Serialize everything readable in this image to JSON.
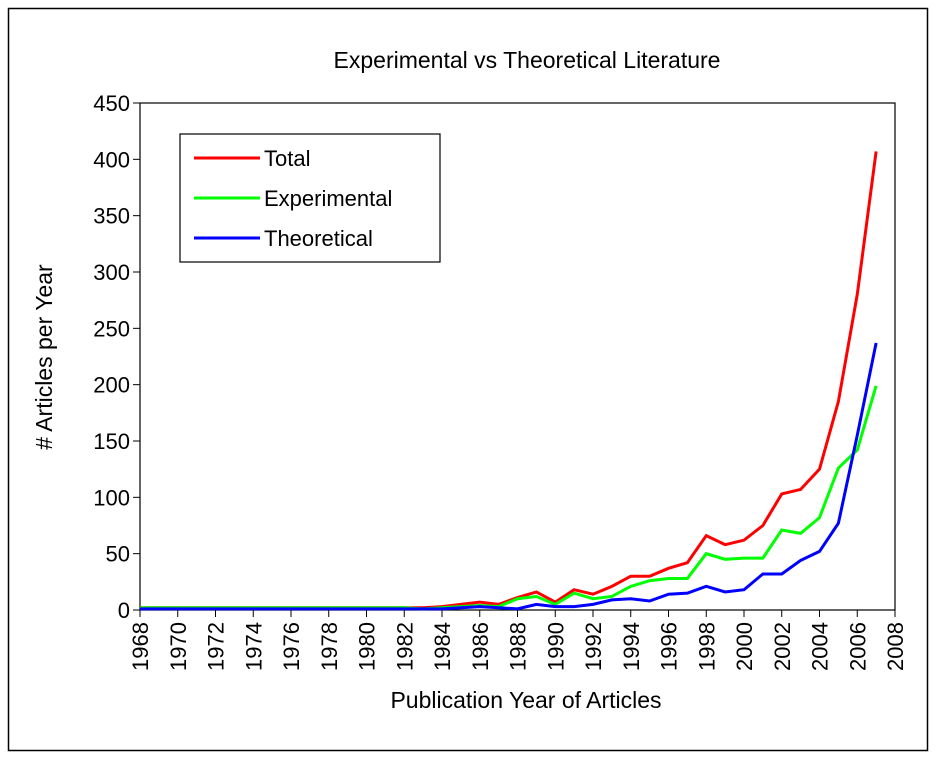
{
  "chart_data": {
    "type": "line",
    "title": "Experimental vs Theoretical Literature",
    "xlabel": "Publication Year of Articles",
    "ylabel": "# Articles per Year",
    "x": [
      1968,
      1969,
      1970,
      1971,
      1972,
      1973,
      1974,
      1975,
      1976,
      1977,
      1978,
      1979,
      1980,
      1981,
      1982,
      1983,
      1984,
      1985,
      1986,
      1987,
      1988,
      1989,
      1990,
      1991,
      1992,
      1993,
      1994,
      1995,
      1996,
      1997,
      1998,
      1999,
      2000,
      2001,
      2002,
      2003,
      2004,
      2005,
      2006,
      2007
    ],
    "series": [
      {
        "name": "Total",
        "color": "#ff0000",
        "values": [
          2,
          2,
          2,
          2,
          2,
          2,
          2,
          2,
          2,
          2,
          2,
          2,
          2,
          2,
          2,
          2,
          3,
          5,
          7,
          5,
          11,
          16,
          7,
          18,
          14,
          21,
          30,
          30,
          37,
          42,
          66,
          58,
          62,
          75,
          103,
          107,
          125,
          185,
          280,
          407
        ]
      },
      {
        "name": "Experimental",
        "color": "#00ff00",
        "values": [
          2,
          2,
          2,
          2,
          2,
          2,
          2,
          2,
          2,
          2,
          2,
          2,
          2,
          2,
          2,
          1,
          2,
          3,
          4,
          3,
          10,
          12,
          5,
          15,
          10,
          12,
          21,
          26,
          28,
          28,
          50,
          45,
          46,
          46,
          71,
          68,
          82,
          126,
          142,
          199
        ]
      },
      {
        "name": "Theoretical",
        "color": "#0000ff",
        "values": [
          1,
          1,
          1,
          1,
          1,
          1,
          1,
          1,
          1,
          1,
          1,
          1,
          1,
          1,
          1,
          1,
          1,
          2,
          3,
          2,
          1,
          5,
          3,
          3,
          5,
          9,
          10,
          8,
          14,
          15,
          21,
          16,
          18,
          32,
          32,
          44,
          52,
          77,
          155,
          237
        ]
      }
    ],
    "xlim": [
      1968,
      2008
    ],
    "xticks": [
      1968,
      1970,
      1972,
      1974,
      1976,
      1978,
      1980,
      1982,
      1984,
      1986,
      1988,
      1990,
      1992,
      1994,
      1996,
      1998,
      2000,
      2002,
      2004,
      2006,
      2008
    ],
    "ylim": [
      0,
      450
    ],
    "yticks": [
      0,
      50,
      100,
      150,
      200,
      250,
      300,
      350,
      400,
      450
    ],
    "grid": false,
    "legend": "upper left"
  }
}
